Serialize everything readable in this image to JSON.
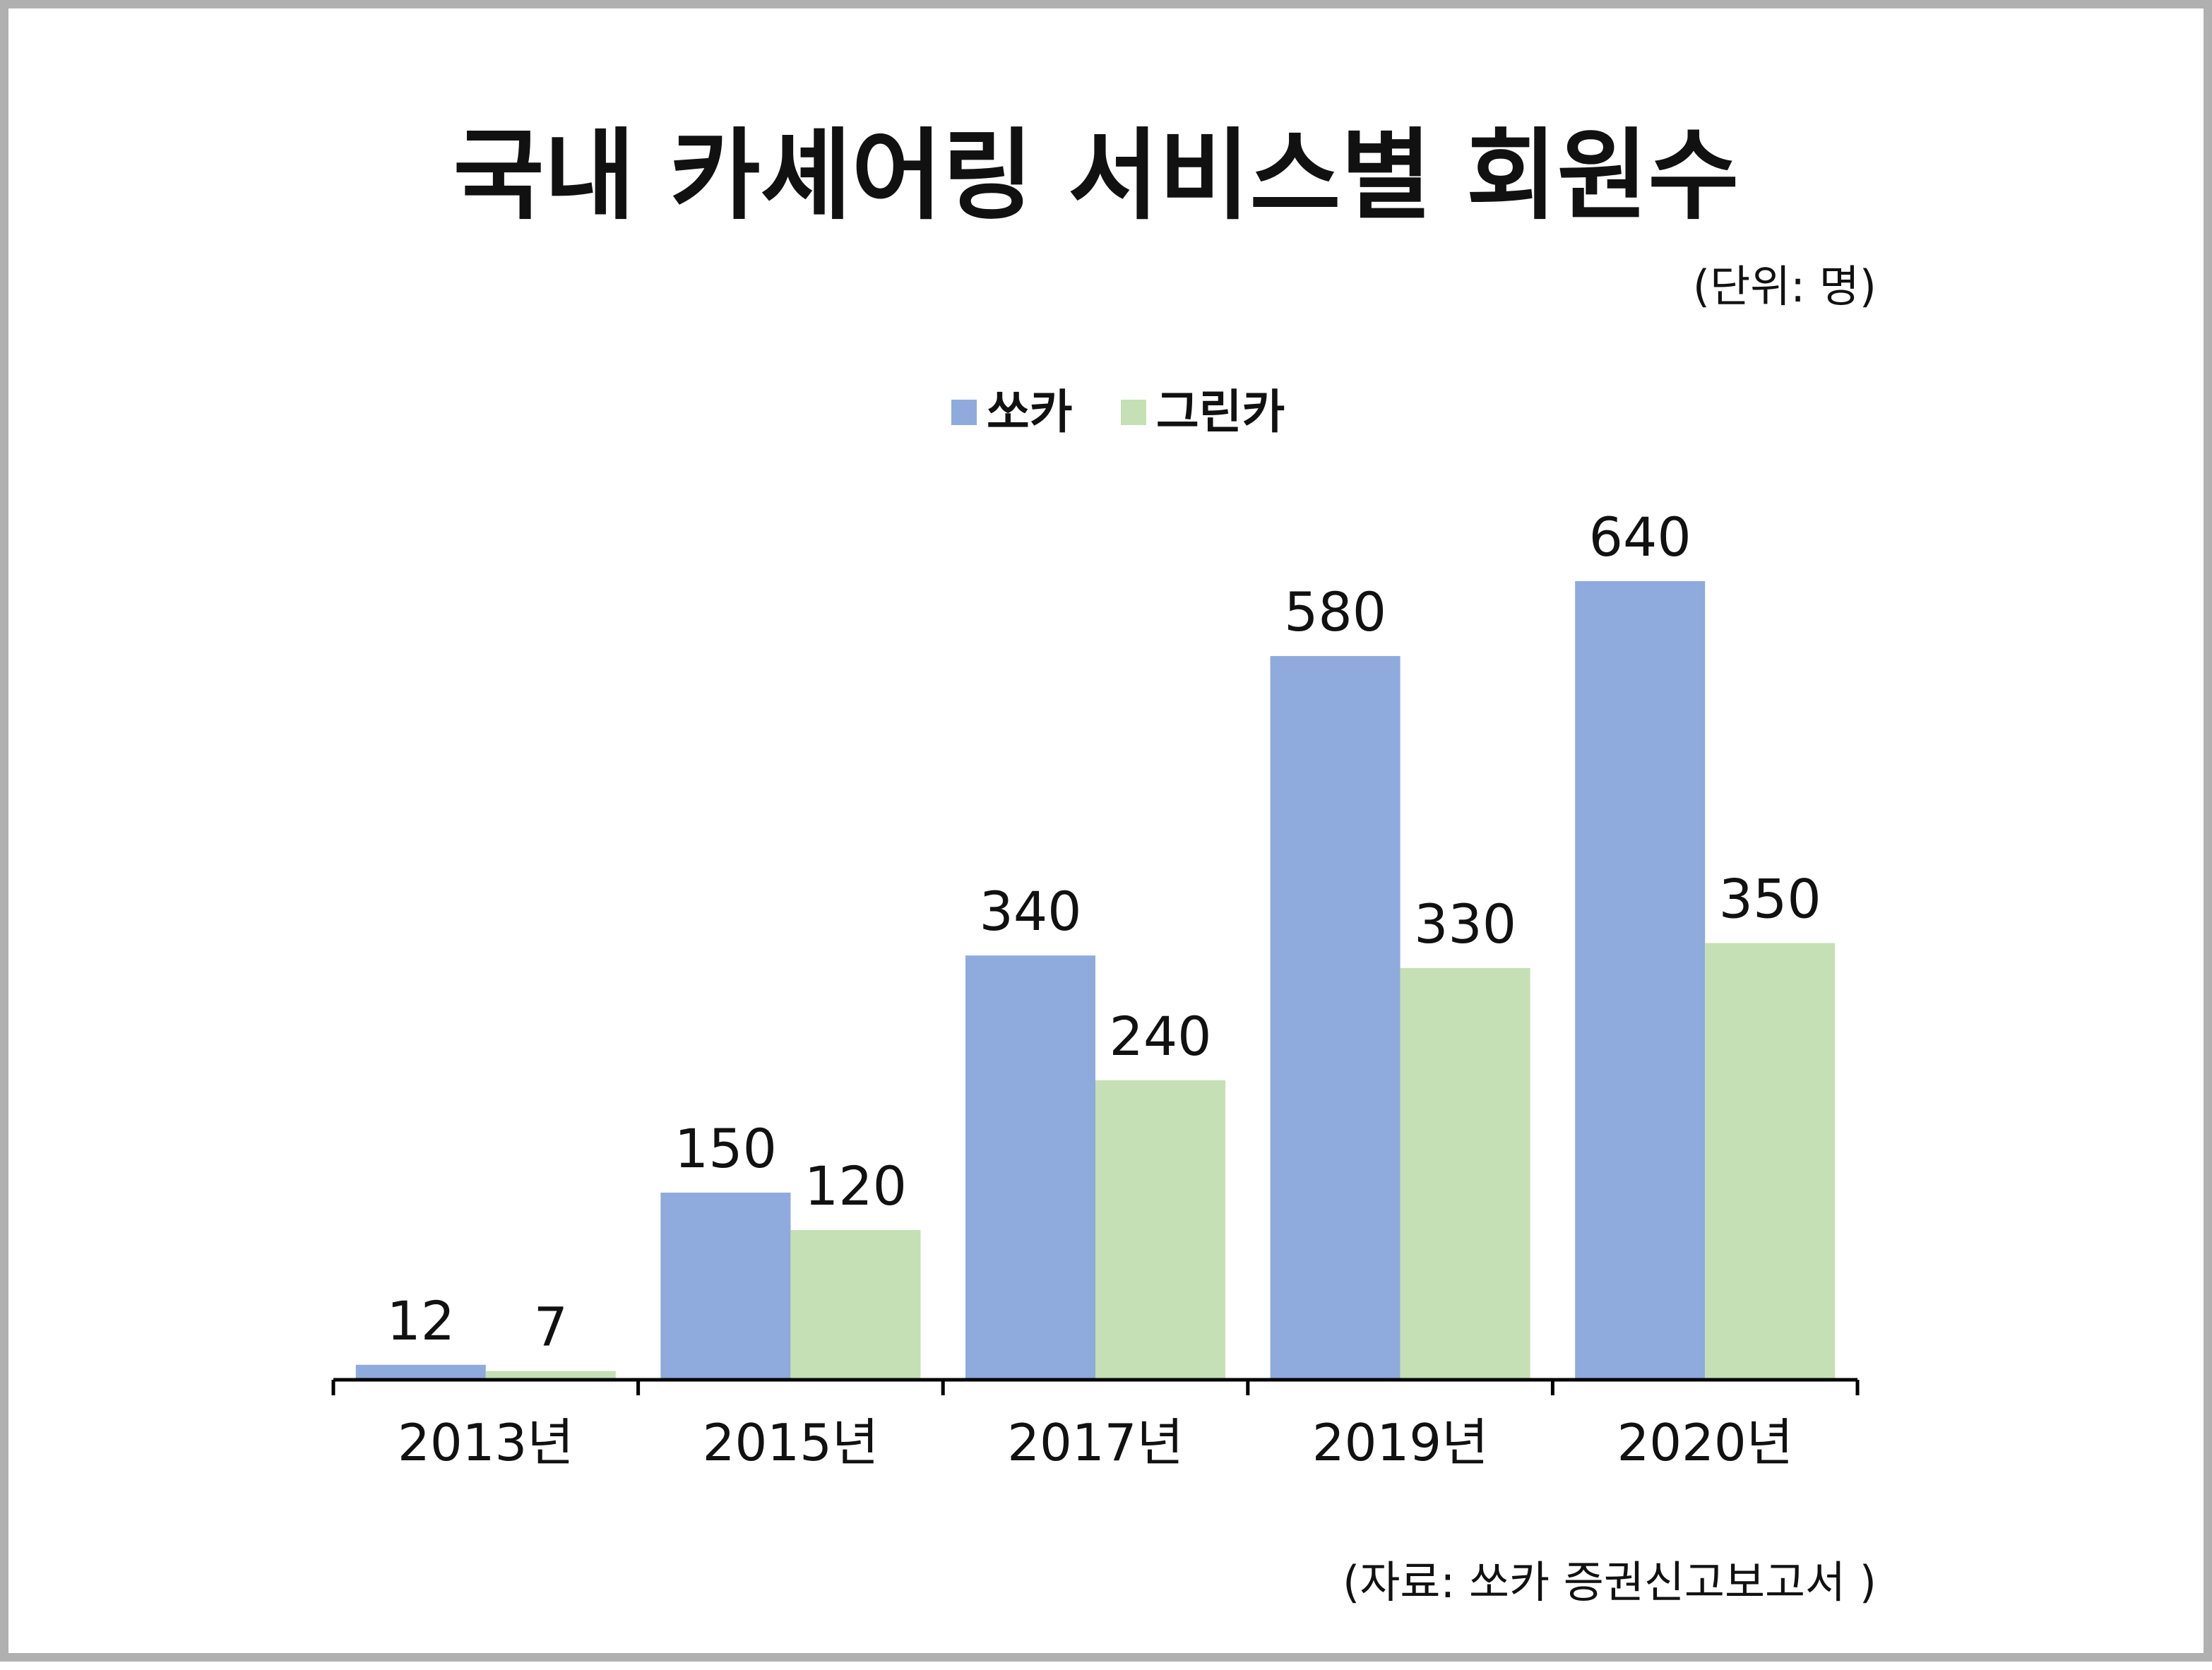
{
  "chart_data": {
    "type": "bar",
    "title": "국내 카셰어링 서비스별 회원수",
    "unit_note": "(단위: 명)",
    "source_note": "(자료: 쏘카 증권신고보고서 )",
    "categories": [
      "2013년",
      "2015년",
      "2017년",
      "2019년",
      "2020년"
    ],
    "series": [
      {
        "name": "쏘카",
        "color": "#8faadc",
        "values": [
          12,
          150,
          340,
          580,
          640
        ]
      },
      {
        "name": "그린카",
        "color": "#c5e0b4",
        "values": [
          7,
          120,
          240,
          330,
          350
        ]
      }
    ],
    "ylim": [
      0,
      700
    ],
    "grid": false,
    "legend_position": "top-center",
    "data_labels": true
  }
}
